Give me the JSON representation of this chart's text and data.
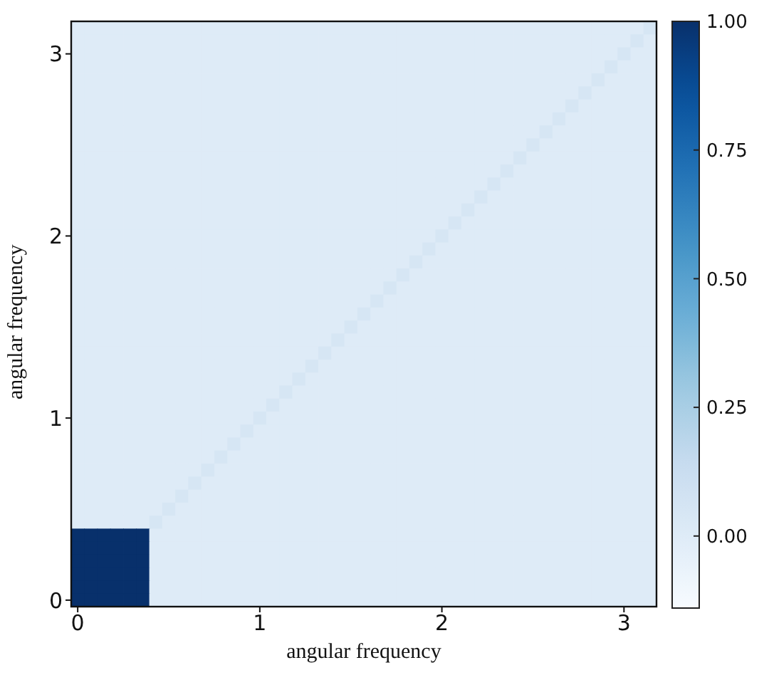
{
  "chart_data": {
    "type": "heatmap",
    "xlabel": "angular frequency",
    "ylabel": "angular frequency",
    "categories": [
      "0",
      null,
      null,
      null,
      null,
      null,
      null,
      null,
      null,
      null,
      null,
      null,
      null,
      null,
      "1",
      null,
      null,
      null,
      null,
      null,
      null,
      null,
      null,
      null,
      null,
      null,
      null,
      null,
      "2",
      null,
      null,
      null,
      null,
      null,
      null,
      null,
      null,
      null,
      null,
      null,
      null,
      null,
      "3",
      null,
      null
    ],
    "y_categories": [
      null,
      null,
      "3",
      null,
      null,
      null,
      null,
      null,
      null,
      null,
      null,
      null,
      null,
      null,
      null,
      null,
      "2",
      null,
      null,
      null,
      null,
      null,
      null,
      null,
      null,
      null,
      null,
      null,
      null,
      null,
      "1",
      null,
      null,
      null,
      null,
      null,
      null,
      null,
      null,
      null,
      null,
      null,
      null,
      null,
      "0"
    ],
    "cells": [
      [
        0,
        0,
        0,
        0,
        0,
        0,
        0,
        0,
        0,
        0,
        0,
        0,
        0,
        0,
        0,
        0,
        0,
        0,
        0,
        0,
        0,
        0,
        0,
        0,
        0,
        0,
        0,
        0,
        0,
        0,
        0,
        0,
        0,
        0,
        0,
        0,
        0,
        0,
        0,
        0,
        0,
        0,
        0,
        0,
        0.05
      ],
      [
        0,
        0,
        0,
        0,
        0,
        0,
        0,
        0,
        0,
        0,
        0,
        0,
        0,
        0,
        0,
        0,
        0,
        0,
        0,
        0,
        0,
        0,
        0,
        0,
        0,
        0,
        0,
        0,
        0,
        0,
        0,
        0,
        0,
        0,
        0,
        0,
        0,
        0,
        0,
        0,
        0,
        0,
        0,
        0.05,
        0
      ],
      [
        0,
        0,
        0,
        0,
        0,
        0,
        0,
        0,
        0,
        0,
        0,
        0,
        0,
        0,
        0,
        0,
        0,
        0,
        0,
        0,
        0,
        0,
        0,
        0,
        0,
        0,
        0,
        0,
        0,
        0,
        0,
        0,
        0,
        0,
        0,
        0,
        0,
        0,
        0,
        0,
        0,
        0,
        0.05,
        0,
        0
      ],
      [
        0,
        0,
        0,
        0,
        0,
        0,
        0,
        0,
        0,
        0,
        0,
        0,
        0,
        0,
        0,
        0,
        0,
        0,
        0,
        0,
        0,
        0,
        0,
        0,
        0,
        0,
        0,
        0,
        0,
        0,
        0,
        0,
        0,
        0,
        0,
        0,
        0,
        0,
        0,
        0,
        0,
        0.05,
        0,
        0,
        0
      ],
      [
        0,
        0,
        0,
        0,
        0,
        0,
        0,
        0,
        0,
        0,
        0,
        0,
        0,
        0,
        0,
        0,
        0,
        0,
        0,
        0,
        0,
        0,
        0,
        0,
        0,
        0,
        0,
        0,
        0,
        0,
        0,
        0,
        0,
        0,
        0,
        0,
        0,
        0,
        0,
        0,
        0.05,
        0,
        0,
        0,
        0
      ],
      [
        0,
        0,
        0,
        0,
        0,
        0,
        0,
        0,
        0,
        0,
        0,
        0,
        0,
        0,
        0,
        0,
        0,
        0,
        0,
        0,
        0,
        0,
        0,
        0,
        0,
        0,
        0,
        0,
        0,
        0,
        0,
        0,
        0,
        0,
        0,
        0,
        0,
        0,
        0,
        0.05,
        0,
        0,
        0,
        0,
        0
      ],
      [
        0,
        0,
        0,
        0,
        0,
        0,
        0,
        0,
        0,
        0,
        0,
        0,
        0,
        0,
        0,
        0,
        0,
        0,
        0,
        0,
        0,
        0,
        0,
        0,
        0,
        0,
        0,
        0,
        0,
        0,
        0,
        0,
        0,
        0,
        0,
        0,
        0,
        0,
        0.05,
        0,
        0,
        0,
        0,
        0,
        0
      ],
      [
        0,
        0,
        0,
        0,
        0,
        0,
        0,
        0,
        0,
        0,
        0,
        0,
        0,
        0,
        0,
        0,
        0,
        0,
        0,
        0,
        0,
        0,
        0,
        0,
        0,
        0,
        0,
        0,
        0,
        0,
        0,
        0,
        0,
        0,
        0,
        0,
        0,
        0.05,
        0,
        0,
        0,
        0,
        0,
        0,
        0
      ],
      [
        0,
        0,
        0,
        0,
        0,
        0,
        0,
        0,
        0,
        0,
        0,
        0,
        0,
        0,
        0,
        0,
        0,
        0,
        0,
        0,
        0,
        0,
        0,
        0,
        0,
        0,
        0,
        0,
        0,
        0,
        0,
        0,
        0,
        0,
        0,
        0,
        0.05,
        0,
        0,
        0,
        0,
        0,
        0,
        0,
        0
      ],
      [
        0,
        0,
        0,
        0,
        0,
        0,
        0,
        0,
        0,
        0,
        0,
        0,
        0,
        0,
        0,
        0,
        0,
        0,
        0,
        0,
        0,
        0,
        0,
        0,
        0,
        0,
        0,
        0,
        0,
        0,
        0,
        0,
        0,
        0,
        0,
        0.05,
        0,
        0,
        0,
        0,
        0,
        0,
        0,
        0,
        0
      ],
      [
        0,
        0,
        0,
        0,
        0,
        0,
        0,
        0,
        0,
        0,
        0,
        0,
        0,
        0,
        0,
        0,
        0,
        0,
        0,
        0,
        0,
        0,
        0,
        0,
        0,
        0,
        0,
        0,
        0,
        0,
        0,
        0,
        0,
        0,
        0.05,
        0,
        0,
        0,
        0,
        0,
        0,
        0,
        0,
        0,
        0
      ],
      [
        0,
        0,
        0,
        0,
        0,
        0,
        0,
        0,
        0,
        0,
        0,
        0,
        0,
        0,
        0,
        0,
        0,
        0,
        0,
        0,
        0,
        0,
        0,
        0,
        0,
        0,
        0,
        0,
        0,
        0,
        0,
        0,
        0,
        0.05,
        0,
        0,
        0,
        0,
        0,
        0,
        0,
        0,
        0,
        0,
        0
      ],
      [
        0,
        0,
        0,
        0,
        0,
        0,
        0,
        0,
        0,
        0,
        0,
        0,
        0,
        0,
        0,
        0,
        0,
        0,
        0,
        0,
        0,
        0,
        0,
        0,
        0,
        0,
        0,
        0,
        0,
        0,
        0,
        0,
        0.05,
        0,
        0,
        0,
        0,
        0,
        0,
        0,
        0,
        0,
        0,
        0,
        0
      ],
      [
        0,
        0,
        0,
        0,
        0,
        0,
        0,
        0,
        0,
        0,
        0,
        0,
        0,
        0,
        0,
        0,
        0,
        0,
        0,
        0,
        0,
        0,
        0,
        0,
        0,
        0,
        0,
        0,
        0,
        0,
        0,
        0.05,
        0,
        0,
        0,
        0,
        0,
        0,
        0,
        0,
        0,
        0,
        0,
        0,
        0
      ],
      [
        0,
        0,
        0,
        0,
        0,
        0,
        0,
        0,
        0,
        0,
        0,
        0,
        0,
        0,
        0,
        0,
        0,
        0,
        0,
        0,
        0,
        0,
        0,
        0,
        0,
        0,
        0,
        0,
        0,
        0,
        0.05,
        0,
        0,
        0,
        0,
        0,
        0,
        0,
        0,
        0,
        0,
        0,
        0,
        0,
        0
      ],
      [
        0,
        0,
        0,
        0,
        0,
        0,
        0,
        0,
        0,
        0,
        0,
        0,
        0,
        0,
        0,
        0,
        0,
        0,
        0,
        0,
        0,
        0,
        0,
        0,
        0,
        0,
        0,
        0,
        0,
        0.05,
        0,
        0,
        0,
        0,
        0,
        0,
        0,
        0,
        0,
        0,
        0,
        0,
        0,
        0,
        0
      ],
      [
        0,
        0,
        0,
        0,
        0,
        0,
        0,
        0,
        0,
        0,
        0,
        0,
        0,
        0,
        0,
        0,
        0,
        0,
        0,
        0,
        0,
        0,
        0,
        0,
        0,
        0,
        0,
        0,
        0.05,
        0,
        0,
        0,
        0,
        0,
        0,
        0,
        0,
        0,
        0,
        0,
        0,
        0,
        0,
        0,
        0
      ],
      [
        0,
        0,
        0,
        0,
        0,
        0,
        0,
        0,
        0,
        0,
        0,
        0,
        0,
        0,
        0,
        0,
        0,
        0,
        0,
        0,
        0,
        0,
        0,
        0,
        0,
        0,
        0,
        0.05,
        0,
        0,
        0,
        0,
        0,
        0,
        0,
        0,
        0,
        0,
        0,
        0,
        0,
        0,
        0,
        0,
        0
      ],
      [
        0,
        0,
        0,
        0,
        0,
        0,
        0,
        0,
        0,
        0,
        0,
        0,
        0,
        0,
        0,
        0,
        0,
        0,
        0,
        0,
        0,
        0,
        0,
        0,
        0,
        0,
        0.05,
        0,
        0,
        0,
        0,
        0,
        0,
        0,
        0,
        0,
        0,
        0,
        0,
        0,
        0,
        0,
        0,
        0,
        0
      ],
      [
        0,
        0,
        0,
        0,
        0,
        0,
        0,
        0,
        0,
        0,
        0,
        0,
        0,
        0,
        0,
        0,
        0,
        0,
        0,
        0,
        0,
        0,
        0,
        0,
        0,
        0.05,
        0,
        0,
        0,
        0,
        0,
        0,
        0,
        0,
        0,
        0,
        0,
        0,
        0,
        0,
        0,
        0,
        0,
        0,
        0
      ],
      [
        0,
        0,
        0,
        0,
        0,
        0,
        0,
        0,
        0,
        0,
        0,
        0,
        0,
        0,
        0,
        0,
        0,
        0,
        0,
        0,
        0,
        0,
        0,
        0,
        0.05,
        0,
        0,
        0,
        0,
        0,
        0,
        0,
        0,
        0,
        0,
        0,
        0,
        0,
        0,
        0,
        0,
        0,
        0,
        0,
        0
      ],
      [
        0,
        0,
        0,
        0,
        0,
        0,
        0,
        0,
        0,
        0,
        0,
        0,
        0,
        0,
        0,
        0,
        0,
        0,
        0,
        0,
        0,
        0,
        0,
        0.05,
        0,
        0,
        0,
        0,
        0,
        0,
        0,
        0,
        0,
        0,
        0,
        0,
        0,
        0,
        0,
        0,
        0,
        0,
        0,
        0,
        0
      ],
      [
        0,
        0,
        0,
        0,
        0,
        0,
        0,
        0,
        0,
        0,
        0,
        0,
        0,
        0,
        0,
        0,
        0,
        0,
        0,
        0,
        0,
        0,
        0.05,
        0,
        0,
        0,
        0,
        0,
        0,
        0,
        0,
        0,
        0,
        0,
        0,
        0,
        0,
        0,
        0,
        0,
        0,
        0,
        0,
        0,
        0
      ],
      [
        0,
        0,
        0,
        0,
        0,
        0,
        0,
        0,
        0,
        0,
        0,
        0,
        0,
        0,
        0,
        0,
        0,
        0,
        0,
        0,
        0,
        0.05,
        0,
        0,
        0,
        0,
        0,
        0,
        0,
        0,
        0,
        0,
        0,
        0,
        0,
        0,
        0,
        0,
        0,
        0,
        0,
        0,
        0,
        0,
        0
      ],
      [
        0,
        0,
        0,
        0,
        0,
        0,
        0,
        0,
        0,
        0,
        0,
        0,
        0,
        0,
        0,
        0,
        0,
        0,
        0,
        0,
        0.05,
        0,
        0,
        0,
        0,
        0,
        0,
        0,
        0,
        0,
        0,
        0,
        0,
        0,
        0,
        0,
        0,
        0,
        0,
        0,
        0,
        0,
        0,
        0,
        0
      ],
      [
        0,
        0,
        0,
        0,
        0,
        0,
        0,
        0,
        0,
        0,
        0,
        0,
        0,
        0,
        0,
        0,
        0,
        0,
        0,
        0.05,
        0,
        0,
        0,
        0,
        0,
        0,
        0,
        0,
        0,
        0,
        0,
        0,
        0,
        0,
        0,
        0,
        0,
        0,
        0,
        0,
        0,
        0,
        0,
        0,
        0
      ],
      [
        0,
        0,
        0,
        0,
        0,
        0,
        0,
        0,
        0,
        0,
        0,
        0,
        0,
        0,
        0,
        0,
        0,
        0,
        0.05,
        0,
        0,
        0,
        0,
        0,
        0,
        0,
        0,
        0,
        0,
        0,
        0,
        0,
        0,
        0,
        0,
        0,
        0,
        0,
        0,
        0,
        0,
        0,
        0,
        0,
        0
      ],
      [
        0,
        0,
        0,
        0,
        0,
        0,
        0,
        0,
        0,
        0,
        0,
        0,
        0,
        0,
        0,
        0,
        0,
        0.05,
        0,
        0,
        0,
        0,
        0,
        0,
        0,
        0,
        0,
        0,
        0,
        0,
        0,
        0,
        0,
        0,
        0,
        0,
        0,
        0,
        0,
        0,
        0,
        0,
        0,
        0,
        0
      ],
      [
        0,
        0,
        0,
        0,
        0,
        0,
        0,
        0,
        0,
        0,
        0,
        0,
        0,
        0,
        0,
        0,
        0.05,
        0,
        0,
        0,
        0,
        0,
        0,
        0,
        0,
        0,
        0,
        0,
        0,
        0,
        0,
        0,
        0,
        0,
        0,
        0,
        0,
        0,
        0,
        0,
        0,
        0,
        0,
        0,
        0
      ],
      [
        0,
        0,
        0,
        0,
        0,
        0,
        0,
        0,
        0,
        0,
        0,
        0,
        0,
        0,
        0,
        0.05,
        0,
        0,
        0,
        0,
        0,
        0,
        0,
        0,
        0,
        0,
        0,
        0,
        0,
        0,
        0,
        0,
        0,
        0,
        0,
        0,
        0,
        0,
        0,
        0,
        0,
        0,
        0,
        0,
        0
      ],
      [
        0,
        0,
        0,
        0,
        0,
        0,
        0,
        0,
        0,
        0,
        0,
        0,
        0,
        0,
        0.05,
        0,
        0,
        0,
        0,
        0,
        0,
        0,
        0,
        0,
        0,
        0,
        0,
        0,
        0,
        0,
        0,
        0,
        0,
        0,
        0,
        0,
        0,
        0,
        0,
        0,
        0,
        0,
        0,
        0,
        0
      ],
      [
        0,
        0,
        0,
        0,
        0,
        0,
        0,
        0,
        0,
        0,
        0,
        0,
        0,
        0.05,
        0,
        0,
        0,
        0,
        0,
        0,
        0,
        0,
        0,
        0,
        0,
        0,
        0,
        0,
        0,
        0,
        0,
        0,
        0,
        0,
        0,
        0,
        0,
        0,
        0,
        0,
        0,
        0,
        0,
        0,
        0
      ],
      [
        0,
        0,
        0,
        0,
        0,
        0,
        0,
        0,
        0,
        0,
        0,
        0,
        0.05,
        0,
        0,
        0,
        0,
        0,
        0,
        0,
        0,
        0,
        0,
        0,
        0,
        0,
        0,
        0,
        0,
        0,
        0,
        0,
        0,
        0,
        0,
        0,
        0,
        0,
        0,
        0,
        0,
        0,
        0,
        0,
        0
      ],
      [
        0,
        0,
        0,
        0,
        0,
        0,
        0,
        0,
        0,
        0,
        0,
        0.05,
        0,
        0,
        0,
        0,
        0,
        0,
        0,
        0,
        0,
        0,
        0,
        0,
        0,
        0,
        0,
        0,
        0,
        0,
        0,
        0,
        0,
        0,
        0,
        0,
        0,
        0,
        0,
        0,
        0,
        0,
        0,
        0,
        0
      ],
      [
        0,
        0,
        0,
        0,
        0,
        0,
        0,
        0,
        0,
        0,
        0.05,
        0,
        0,
        0,
        0,
        0,
        0,
        0,
        0,
        0,
        0,
        0,
        0,
        0,
        0,
        0,
        0,
        0,
        0,
        0,
        0,
        0,
        0,
        0,
        0,
        0,
        0,
        0,
        0,
        0,
        0,
        0,
        0,
        0,
        0
      ],
      [
        0,
        0,
        0,
        0,
        0,
        0,
        0,
        0,
        0,
        0.05,
        0,
        0,
        0,
        0,
        0,
        0,
        0,
        0,
        0,
        0,
        0,
        0,
        0,
        0,
        0,
        0,
        0,
        0,
        0,
        0,
        0,
        0,
        0,
        0,
        0,
        0,
        0,
        0,
        0,
        0,
        0,
        0,
        0,
        0,
        0
      ],
      [
        0,
        0,
        0,
        0,
        0,
        0,
        0,
        0,
        0.05,
        0,
        0,
        0,
        0,
        0,
        0,
        0,
        0,
        0,
        0,
        0,
        0,
        0,
        0,
        0,
        0,
        0,
        0,
        0,
        0,
        0,
        0,
        0,
        0,
        0,
        0,
        0,
        0,
        0,
        0,
        0,
        0,
        0,
        0,
        0,
        0
      ],
      [
        0,
        0,
        0,
        0,
        0,
        0,
        0,
        0.05,
        0,
        0,
        0,
        0,
        0,
        0,
        0,
        0,
        0,
        0,
        0,
        0,
        0,
        0,
        0,
        0,
        0,
        0,
        0,
        0,
        0,
        0,
        0,
        0,
        0,
        0,
        0,
        0,
        0,
        0,
        0,
        0,
        0,
        0,
        0,
        0,
        0
      ],
      [
        0,
        0,
        0,
        0,
        0,
        0,
        0.05,
        0,
        0,
        0,
        0,
        0,
        0,
        0,
        0,
        0,
        0,
        0,
        0,
        0,
        0,
        0,
        0,
        0,
        0,
        0,
        0,
        0,
        0,
        0,
        0,
        0,
        0,
        0,
        0,
        0,
        0,
        0,
        0,
        0,
        0,
        0,
        0,
        0,
        0
      ],
      [
        1,
        1,
        1,
        1,
        1,
        1,
        0,
        0,
        0,
        0,
        0,
        0,
        0,
        0,
        0,
        0,
        0,
        0,
        0,
        0,
        0,
        0,
        0,
        0,
        0,
        0,
        0,
        0,
        0,
        0,
        0,
        0,
        0,
        0,
        0,
        0,
        0,
        0,
        0,
        0,
        0,
        0,
        0,
        0,
        0
      ],
      [
        1,
        1,
        1,
        1,
        1,
        1,
        0,
        0,
        0,
        0,
        0,
        0,
        0,
        0,
        0,
        0,
        0,
        0,
        0,
        0,
        0,
        0,
        0,
        0,
        0,
        0,
        0,
        0,
        0,
        0,
        0,
        0,
        0,
        0,
        0,
        0,
        0,
        0,
        0,
        0,
        0,
        0,
        0,
        0,
        0
      ],
      [
        1,
        1,
        1,
        1,
        1,
        1,
        0,
        0,
        0,
        0,
        0,
        0,
        0,
        0,
        0,
        0,
        0,
        0,
        0,
        0,
        0,
        0,
        0,
        0,
        0,
        0,
        0,
        0,
        0,
        0,
        0,
        0,
        0,
        0,
        0,
        0,
        0,
        0,
        0,
        0,
        0,
        0,
        0,
        0,
        0
      ],
      [
        1,
        1,
        1,
        1,
        1,
        1,
        0,
        0,
        0,
        0,
        0,
        0,
        0,
        0,
        0,
        0,
        0,
        0,
        0,
        0,
        0,
        0,
        0,
        0,
        0,
        0,
        0,
        0,
        0,
        0,
        0,
        0,
        0,
        0,
        0,
        0,
        0,
        0,
        0,
        0,
        0,
        0,
        0,
        0,
        0
      ],
      [
        1,
        1,
        1,
        1,
        1,
        1,
        0,
        0,
        0,
        0,
        0,
        0,
        0,
        0,
        0,
        0,
        0,
        0,
        0,
        0,
        0,
        0,
        0,
        0,
        0,
        0,
        0,
        0,
        0,
        0,
        0,
        0,
        0,
        0,
        0,
        0,
        0,
        0,
        0,
        0,
        0,
        0,
        0,
        0,
        0
      ],
      [
        1,
        1,
        1,
        1,
        1,
        1,
        0,
        0,
        0,
        0,
        0,
        0,
        0,
        0,
        0,
        0,
        0,
        0,
        0,
        0,
        0,
        0,
        0,
        0,
        0,
        0,
        0,
        0,
        0,
        0,
        0,
        0,
        0,
        0,
        0,
        0,
        0,
        0,
        0,
        0,
        0,
        0,
        0,
        0,
        0
      ]
    ],
    "clim": [
      -0.14,
      1
    ],
    "cticks": [
      {
        "value": 0,
        "label": "0.00"
      },
      {
        "value": 0.25,
        "label": "0.25"
      },
      {
        "value": 0.5,
        "label": "0.50"
      },
      {
        "value": 0.75,
        "label": "0.75"
      },
      {
        "value": 1,
        "label": "1.00"
      }
    ]
  }
}
